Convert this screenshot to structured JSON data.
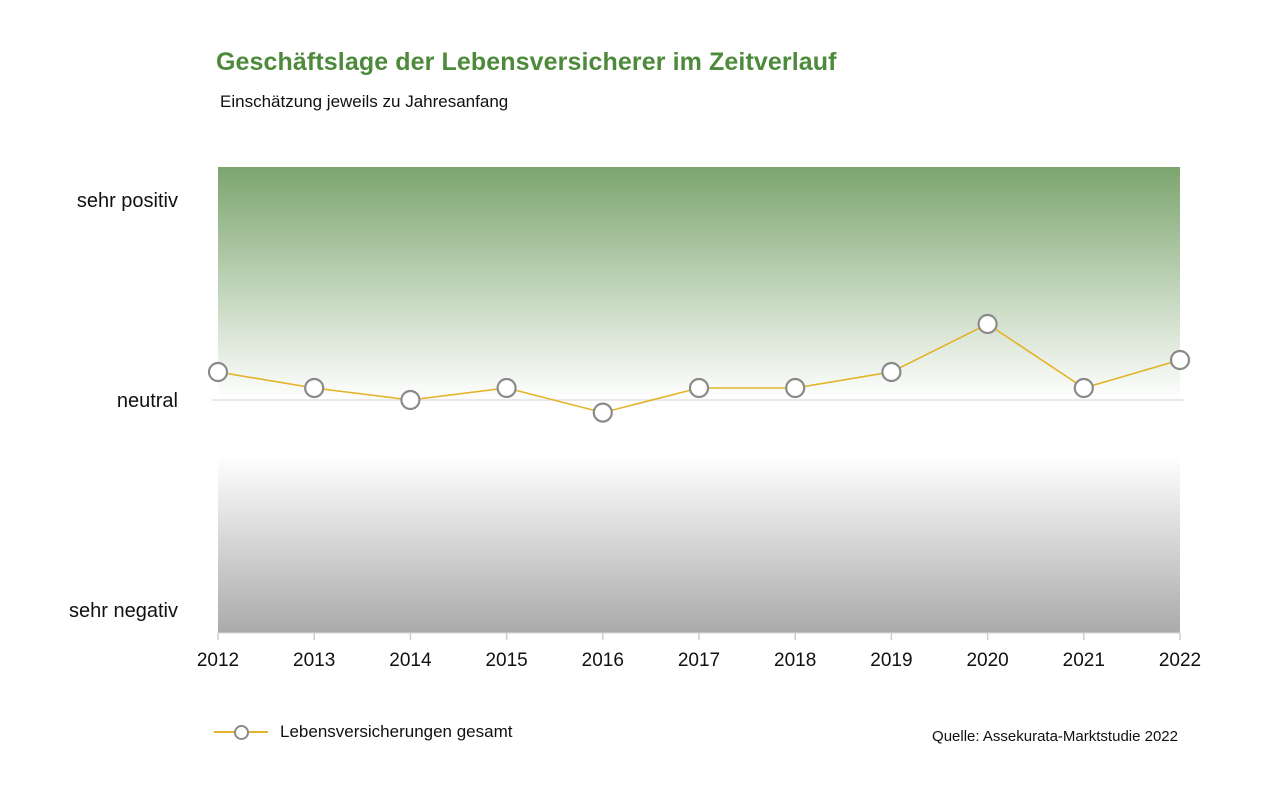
{
  "chart_data": {
    "type": "line",
    "title": "Geschäftslage der Lebensversicherer im Zeitverlauf",
    "subtitle": "Einschätzung jeweils zu Jahresanfang",
    "x": [
      "2012",
      "2013",
      "2014",
      "2015",
      "2016",
      "2017",
      "2018",
      "2019",
      "2020",
      "2021",
      "2022"
    ],
    "y_categories": [
      "sehr negativ",
      "neutral",
      "sehr positiv"
    ],
    "ylim": [
      -1,
      1
    ],
    "series": [
      {
        "name": "Lebensversicherungen gesamt",
        "values": [
          0.14,
          0.06,
          0.0,
          0.06,
          -0.06,
          0.06,
          0.06,
          0.14,
          0.38,
          0.06,
          0.2
        ]
      }
    ],
    "legend_position": "bottom-left",
    "grid": false,
    "source": "Quelle: Assekurata-Marktstudie 2022",
    "colors": {
      "title": "#4e8a3b",
      "positive_band": "#7ca56e",
      "negative_band": "#aaaaaa",
      "line": "#e3b42a",
      "marker_stroke": "#8a8a8a"
    }
  }
}
